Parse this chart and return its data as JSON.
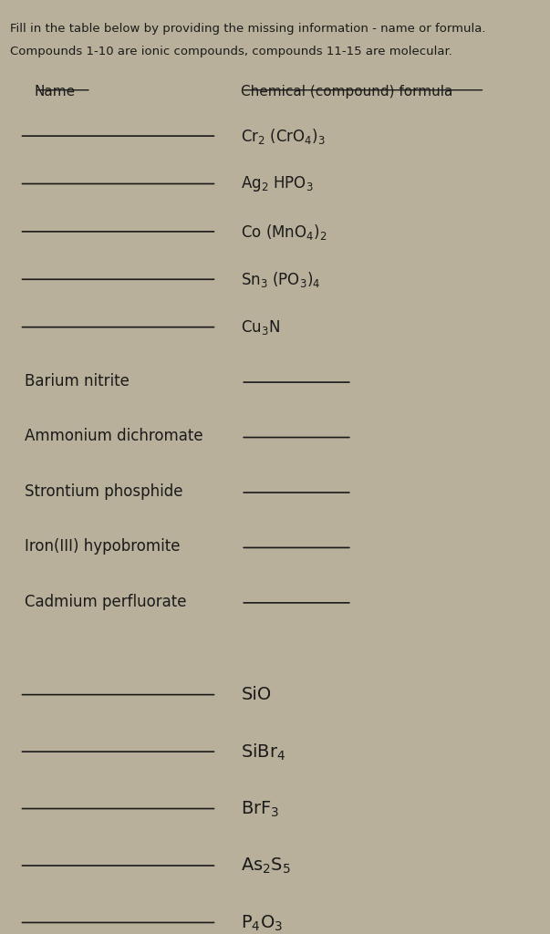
{
  "bg_color": "#b8b09a",
  "text_color": "#1a1a1a",
  "title_line1": "Fill in the table below by providing the missing information - name or formula.",
  "title_line2": "Compounds 1-10 are ionic compounds, compounds 11-15 are molecular.",
  "col_name_header": "Name",
  "col_formula_header": "Chemical (compound) formula",
  "rows": [
    {
      "name_blank": true,
      "formula_display": "Cr$_2$ (CrO$_4$)$_3$"
    },
    {
      "name_blank": true,
      "formula_display": "Ag$_2$ HPO$_3$"
    },
    {
      "name_blank": true,
      "formula_display": "Co (MnO$_4$)$_2$"
    },
    {
      "name_blank": true,
      "formula_display": "Sn$_3$ (PO$_3$)$_4$"
    },
    {
      "name_blank": true,
      "formula_display": "Cu$_3$N"
    },
    {
      "name_text": "Barium nitrite",
      "formula_blank": true
    },
    {
      "name_text": "Ammonium dichromate",
      "formula_blank": true
    },
    {
      "name_text": "Strontium phosphide",
      "formula_blank": true
    },
    {
      "name_text": "Iron(III) hypobromite",
      "formula_blank": true
    },
    {
      "name_text": "Cadmium perfluorate",
      "formula_blank": true
    },
    {
      "name_blank": true,
      "formula_display": "SiO",
      "spacer_above": true
    },
    {
      "name_blank": true,
      "formula_display": "SiBr$_4$"
    },
    {
      "name_blank": true,
      "formula_display": "BrF$_3$"
    },
    {
      "name_blank": true,
      "formula_display": "As$_2$S$_5$"
    },
    {
      "name_blank": true,
      "formula_display": "P$_4$O$_3$"
    }
  ],
  "font_size_title": 9.5,
  "font_size_header": 11,
  "font_size_body": 12,
  "font_size_body_large": 14
}
